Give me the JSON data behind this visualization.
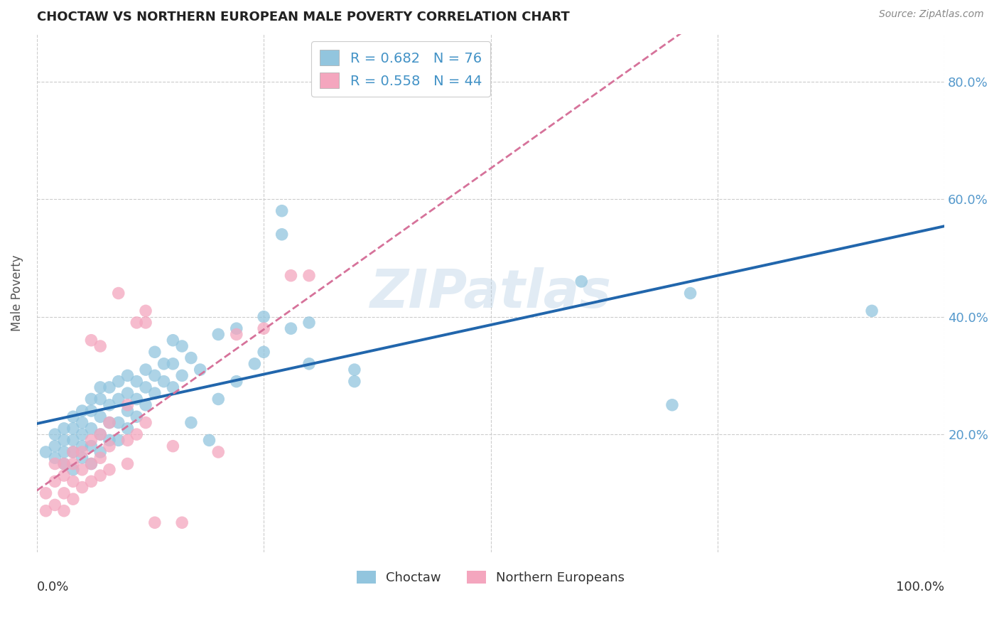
{
  "title": "CHOCTAW VS NORTHERN EUROPEAN MALE POVERTY CORRELATION CHART",
  "source": "Source: ZipAtlas.com",
  "ylabel": "Male Poverty",
  "ytick_labels": [
    "20.0%",
    "40.0%",
    "60.0%",
    "80.0%"
  ],
  "ytick_values": [
    0.2,
    0.4,
    0.6,
    0.8
  ],
  "xlim": [
    0.0,
    1.0
  ],
  "ylim": [
    0.0,
    0.88
  ],
  "choctaw_color": "#92c5de",
  "northern_european_color": "#f4a6be",
  "choctaw_trendline_color": "#2166ac",
  "northern_european_trendline_color": "#d6729a",
  "watermark": "ZIPatlas",
  "background_color": "#ffffff",
  "grid_color": "#cccccc",
  "choctaw_scatter": [
    [
      0.01,
      0.17
    ],
    [
      0.02,
      0.16
    ],
    [
      0.02,
      0.18
    ],
    [
      0.02,
      0.2
    ],
    [
      0.03,
      0.15
    ],
    [
      0.03,
      0.17
    ],
    [
      0.03,
      0.19
    ],
    [
      0.03,
      0.21
    ],
    [
      0.04,
      0.14
    ],
    [
      0.04,
      0.17
    ],
    [
      0.04,
      0.19
    ],
    [
      0.04,
      0.21
    ],
    [
      0.04,
      0.23
    ],
    [
      0.05,
      0.16
    ],
    [
      0.05,
      0.18
    ],
    [
      0.05,
      0.2
    ],
    [
      0.05,
      0.22
    ],
    [
      0.05,
      0.24
    ],
    [
      0.06,
      0.15
    ],
    [
      0.06,
      0.18
    ],
    [
      0.06,
      0.21
    ],
    [
      0.06,
      0.24
    ],
    [
      0.06,
      0.26
    ],
    [
      0.07,
      0.17
    ],
    [
      0.07,
      0.2
    ],
    [
      0.07,
      0.23
    ],
    [
      0.07,
      0.26
    ],
    [
      0.07,
      0.28
    ],
    [
      0.08,
      0.19
    ],
    [
      0.08,
      0.22
    ],
    [
      0.08,
      0.25
    ],
    [
      0.08,
      0.28
    ],
    [
      0.09,
      0.19
    ],
    [
      0.09,
      0.22
    ],
    [
      0.09,
      0.26
    ],
    [
      0.09,
      0.29
    ],
    [
      0.1,
      0.21
    ],
    [
      0.1,
      0.24
    ],
    [
      0.1,
      0.27
    ],
    [
      0.1,
      0.3
    ],
    [
      0.11,
      0.23
    ],
    [
      0.11,
      0.26
    ],
    [
      0.11,
      0.29
    ],
    [
      0.12,
      0.25
    ],
    [
      0.12,
      0.28
    ],
    [
      0.12,
      0.31
    ],
    [
      0.13,
      0.27
    ],
    [
      0.13,
      0.3
    ],
    [
      0.13,
      0.34
    ],
    [
      0.14,
      0.29
    ],
    [
      0.14,
      0.32
    ],
    [
      0.15,
      0.28
    ],
    [
      0.15,
      0.32
    ],
    [
      0.15,
      0.36
    ],
    [
      0.16,
      0.3
    ],
    [
      0.16,
      0.35
    ],
    [
      0.17,
      0.33
    ],
    [
      0.17,
      0.22
    ],
    [
      0.18,
      0.31
    ],
    [
      0.19,
      0.19
    ],
    [
      0.2,
      0.37
    ],
    [
      0.2,
      0.26
    ],
    [
      0.22,
      0.38
    ],
    [
      0.22,
      0.29
    ],
    [
      0.24,
      0.32
    ],
    [
      0.25,
      0.4
    ],
    [
      0.25,
      0.34
    ],
    [
      0.27,
      0.58
    ],
    [
      0.27,
      0.54
    ],
    [
      0.28,
      0.38
    ],
    [
      0.3,
      0.39
    ],
    [
      0.3,
      0.32
    ],
    [
      0.35,
      0.31
    ],
    [
      0.35,
      0.29
    ],
    [
      0.6,
      0.46
    ],
    [
      0.7,
      0.25
    ],
    [
      0.72,
      0.44
    ],
    [
      0.92,
      0.41
    ]
  ],
  "northern_european_scatter": [
    [
      0.01,
      0.1
    ],
    [
      0.01,
      0.07
    ],
    [
      0.02,
      0.08
    ],
    [
      0.02,
      0.12
    ],
    [
      0.02,
      0.15
    ],
    [
      0.03,
      0.07
    ],
    [
      0.03,
      0.1
    ],
    [
      0.03,
      0.13
    ],
    [
      0.03,
      0.15
    ],
    [
      0.04,
      0.09
    ],
    [
      0.04,
      0.12
    ],
    [
      0.04,
      0.15
    ],
    [
      0.04,
      0.17
    ],
    [
      0.05,
      0.11
    ],
    [
      0.05,
      0.14
    ],
    [
      0.05,
      0.17
    ],
    [
      0.06,
      0.12
    ],
    [
      0.06,
      0.15
    ],
    [
      0.06,
      0.19
    ],
    [
      0.06,
      0.36
    ],
    [
      0.07,
      0.13
    ],
    [
      0.07,
      0.16
    ],
    [
      0.07,
      0.2
    ],
    [
      0.07,
      0.35
    ],
    [
      0.08,
      0.14
    ],
    [
      0.08,
      0.18
    ],
    [
      0.08,
      0.22
    ],
    [
      0.09,
      0.44
    ],
    [
      0.1,
      0.15
    ],
    [
      0.1,
      0.19
    ],
    [
      0.1,
      0.25
    ],
    [
      0.11,
      0.2
    ],
    [
      0.11,
      0.39
    ],
    [
      0.12,
      0.22
    ],
    [
      0.12,
      0.39
    ],
    [
      0.12,
      0.41
    ],
    [
      0.13,
      0.05
    ],
    [
      0.15,
      0.18
    ],
    [
      0.16,
      0.05
    ],
    [
      0.2,
      0.17
    ],
    [
      0.22,
      0.37
    ],
    [
      0.25,
      0.38
    ],
    [
      0.28,
      0.47
    ],
    [
      0.3,
      0.47
    ]
  ]
}
